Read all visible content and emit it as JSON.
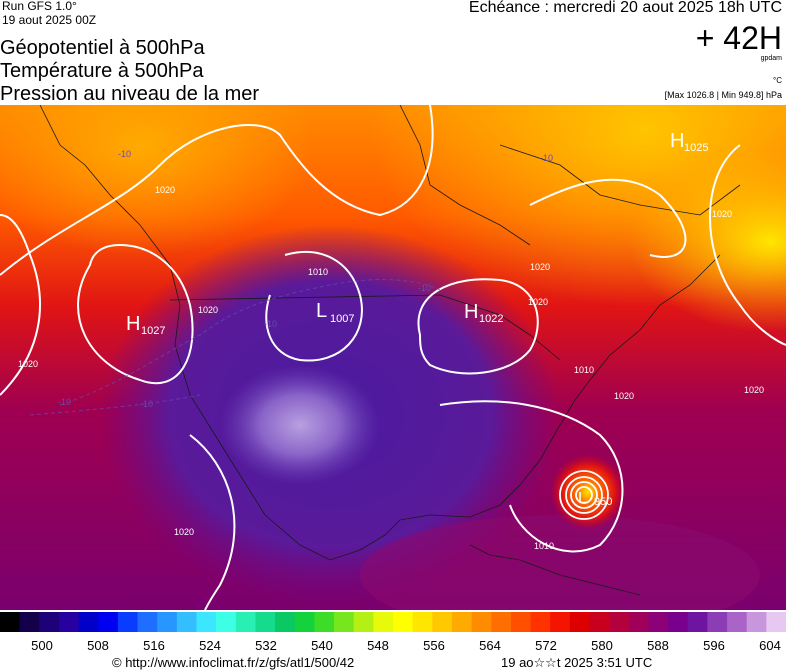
{
  "header": {
    "run": "Run GFS 1.0°",
    "run_date": "19 aout 2025 00Z",
    "titles": [
      "Géopotentiel à 500hPa",
      "Température à 500hPa",
      "Pression au niveau de la mer"
    ],
    "echeance": "Echéance : mercredi 20 aout 2025 18h UTC",
    "offset": "+ 42H",
    "unit_gpdam": "gpdam",
    "unit_degc": "°C",
    "max_min": "[Max 1026.8 | Min 949.8] hPa"
  },
  "pressure_centers": [
    {
      "letter": "H",
      "value": "1027"
    },
    {
      "letter": "L",
      "value": "1007"
    },
    {
      "letter": "H",
      "value": "1022"
    },
    {
      "letter": "H",
      "value": "1025"
    },
    {
      "letter": "L",
      "value": "950"
    }
  ],
  "isobar_labels": [
    "1020",
    "1020",
    "1020",
    "1010",
    "1020",
    "1020",
    "1020",
    "1020",
    "1020",
    "1010",
    "1020",
    "1010"
  ],
  "temp_labels": [
    "-10",
    "-10",
    "-10",
    "-10",
    "-10",
    "-10"
  ],
  "color_scale": {
    "ticks": [
      "500",
      "508",
      "516",
      "524",
      "532",
      "540",
      "548",
      "556",
      "564",
      "572",
      "580",
      "588",
      "596",
      "604"
    ],
    "colors": [
      "#000000",
      "#14004a",
      "#1e0078",
      "#2800a0",
      "#0000c8",
      "#0000f0",
      "#0a3cff",
      "#1e6eff",
      "#2896ff",
      "#32beff",
      "#3ce6ff",
      "#3cffe6",
      "#28f0b4",
      "#14dc8c",
      "#0ac864",
      "#14d23c",
      "#3cdc28",
      "#78e61e",
      "#b4f014",
      "#e6fa0a",
      "#ffff00",
      "#ffe600",
      "#ffc800",
      "#ffaa00",
      "#ff8c00",
      "#ff6e00",
      "#ff5000",
      "#ff3200",
      "#f51400",
      "#dc0000",
      "#c8001e",
      "#b4003c",
      "#a0005a",
      "#8c0078",
      "#78008c",
      "#6e14a0",
      "#8c3cb4",
      "#aa64c8",
      "#c896dc",
      "#e6c8f0"
    ]
  },
  "footer": {
    "url": "© http://www.infoclimat.fr/z/gfs/atl1/500/42",
    "generated": "19 ao☆☆t 2025  3:51 UTC"
  }
}
